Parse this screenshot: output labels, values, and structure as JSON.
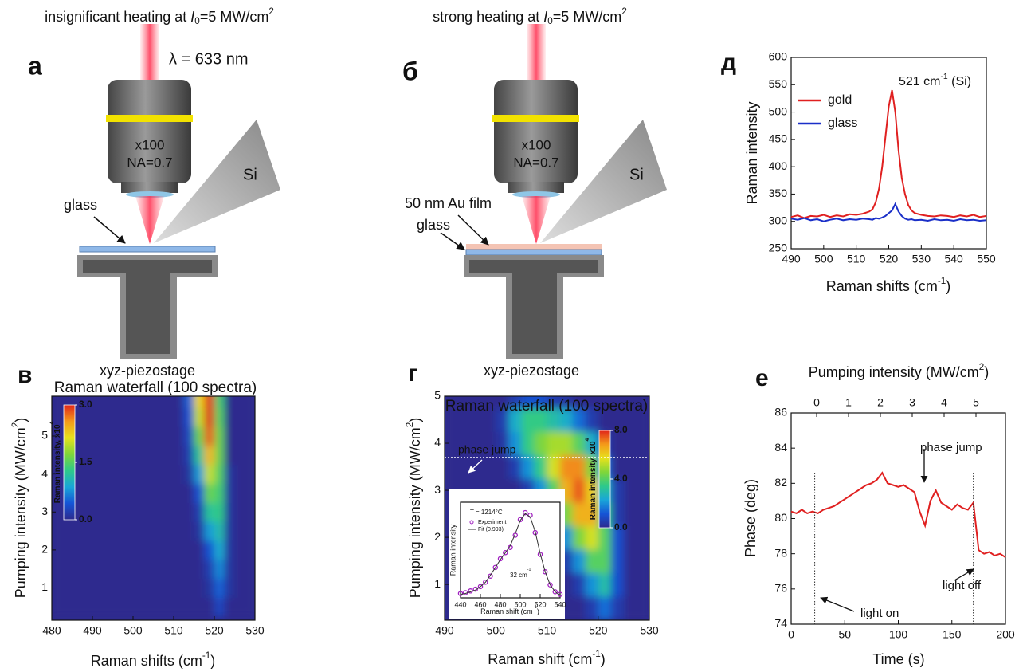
{
  "diagrams": [
    {
      "panel": "а",
      "heading": {
        "text": "insignificant heating at ",
        "var": "I",
        "sub": "0",
        "mid": "=5 MW/cm",
        "sup": "2"
      },
      "wavelength": "λ = 633 nm",
      "objective": [
        "x100",
        "NA=0.7"
      ],
      "tip": "Si",
      "labels": [
        "glass"
      ],
      "stage": "xyz-piezostage"
    },
    {
      "panel": "б",
      "heading": {
        "text": "strong heating at ",
        "var": "I",
        "sub": "0",
        "mid": "=5 MW/cm",
        "sup": "2"
      },
      "objective": [
        "x100",
        "NA=0.7"
      ],
      "tip": "Si",
      "labels": [
        "50 nm Au film",
        "glass"
      ],
      "stage": "xyz-piezostage"
    }
  ],
  "chart_data": [
    {
      "type": "line",
      "panel": "д",
      "xlabel": {
        "text": "Raman shifts (cm",
        "sup": "-1",
        "tail": ")"
      },
      "ylabel": "Raman intensity",
      "x": [
        490,
        492,
        494,
        496,
        498,
        500,
        502,
        504,
        506,
        508,
        510,
        512,
        514,
        515,
        516,
        517,
        518,
        519,
        520,
        521,
        522,
        523,
        524,
        525,
        526,
        527,
        528,
        530,
        532,
        534,
        536,
        538,
        540,
        542,
        544,
        546,
        548,
        550
      ],
      "series": [
        {
          "name": "gold",
          "color": "#e02020",
          "values": [
            308,
            311,
            306,
            310,
            309,
            312,
            308,
            311,
            309,
            313,
            312,
            314,
            318,
            322,
            335,
            360,
            400,
            455,
            510,
            540,
            500,
            430,
            380,
            350,
            330,
            320,
            315,
            312,
            310,
            309,
            311,
            310,
            308,
            311,
            309,
            312,
            308,
            310
          ]
        },
        {
          "name": "glass",
          "color": "#1a2fc8",
          "values": [
            305,
            303,
            306,
            302,
            304,
            300,
            303,
            305,
            302,
            304,
            303,
            305,
            304,
            303,
            306,
            305,
            307,
            310,
            315,
            320,
            332,
            318,
            310,
            305,
            303,
            304,
            302,
            303,
            301,
            304,
            302,
            303,
            301,
            304,
            302,
            303,
            301,
            302
          ]
        }
      ],
      "annotation": {
        "text": "521 cm",
        "sup": "-1",
        "tail": " (Si)"
      },
      "xlim": [
        490,
        550
      ],
      "xticks": [
        490,
        500,
        510,
        520,
        530,
        540,
        550
      ],
      "ylim": [
        250,
        600
      ],
      "yticks": [
        250,
        300,
        350,
        400,
        450,
        500,
        550,
        600
      ],
      "legend": "upper left",
      "grid": false
    },
    {
      "type": "line",
      "panel": "е",
      "xlabel": "Time (s)",
      "ylabel": "Phase (deg)",
      "x2label": {
        "text": "Pumping intensity (MW/cm",
        "sup": "2",
        "tail": ")"
      },
      "x": [
        0,
        5,
        10,
        15,
        20,
        25,
        30,
        35,
        40,
        45,
        50,
        55,
        60,
        65,
        70,
        75,
        80,
        85,
        90,
        95,
        100,
        105,
        110,
        115,
        120,
        125,
        130,
        135,
        140,
        145,
        150,
        155,
        160,
        165,
        170,
        175,
        180,
        185,
        190,
        195,
        200
      ],
      "series": [
        {
          "color": "#e02020",
          "values": [
            80.4,
            80.3,
            80.5,
            80.3,
            80.4,
            80.3,
            80.5,
            80.6,
            80.7,
            80.9,
            81.1,
            81.3,
            81.5,
            81.7,
            81.9,
            82.0,
            82.2,
            82.6,
            82.0,
            81.9,
            81.8,
            81.9,
            81.7,
            81.5,
            80.4,
            79.6,
            81.0,
            81.6,
            80.9,
            80.7,
            80.5,
            80.8,
            80.6,
            80.5,
            80.9,
            78.2,
            78.0,
            78.1,
            77.9,
            78.0,
            77.8
          ]
        }
      ],
      "vlines": [
        22,
        170
      ],
      "annotations": [
        "phase jump",
        "light off",
        "light on"
      ],
      "xlim": [
        0,
        200
      ],
      "xticks": [
        0,
        50,
        100,
        150,
        200
      ],
      "ylim": [
        74,
        86
      ],
      "yticks": [
        74,
        76,
        78,
        80,
        82,
        84,
        86
      ],
      "x2lim": [
        -0.8,
        5.925
      ],
      "x2ticks": [
        0,
        1,
        2,
        3,
        4,
        5
      ],
      "grid": false
    },
    {
      "type": "heatmap",
      "panel": "в",
      "title": "Raman waterfall (100 spectra)",
      "xlabel": {
        "text": "Raman shifts (cm",
        "sup": "-1",
        "tail": ")"
      },
      "ylabel": {
        "text": "Pumping intensity (MW/cm",
        "sup": "2",
        "tail": ")"
      },
      "x": [
        481.25,
        483.75,
        486.25,
        488.75,
        491.25,
        493.75,
        496.25,
        498.75,
        501.25,
        503.75,
        506.25,
        508.75,
        511.25,
        513.75,
        516.25,
        518.75,
        521.25,
        523.75,
        526.25,
        528.75
      ],
      "y": [
        0.5,
        1.0,
        1.5,
        2.0,
        2.5,
        3.0,
        3.5,
        4.0,
        4.5,
        5.0,
        5.5,
        6.0
      ],
      "z": [
        [
          0,
          0,
          0,
          0,
          0,
          0,
          0,
          0,
          0,
          0,
          0,
          0,
          0,
          0,
          0,
          0,
          0.3,
          0,
          0,
          0
        ],
        [
          0,
          0,
          0,
          0,
          0,
          0,
          0,
          0,
          0,
          0,
          0,
          0,
          0,
          0,
          0,
          0.1,
          0.5,
          0.1,
          0,
          0
        ],
        [
          0,
          0,
          0,
          0,
          0,
          0,
          0,
          0,
          0,
          0,
          0,
          0,
          0,
          0,
          0,
          0.2,
          0.7,
          0.1,
          0,
          0
        ],
        [
          0,
          0,
          0,
          0,
          0,
          0,
          0,
          0,
          0,
          0,
          0,
          0,
          0,
          0,
          0,
          0.4,
          0.9,
          0.1,
          0,
          0
        ],
        [
          0,
          0,
          0,
          0,
          0,
          0,
          0,
          0,
          0,
          0,
          0,
          0,
          0,
          0,
          0.1,
          0.8,
          1.1,
          0.1,
          0,
          0
        ],
        [
          0,
          0,
          0,
          0,
          0,
          0,
          0,
          0,
          0,
          0,
          0,
          0,
          0,
          0,
          0.2,
          1.2,
          1.3,
          0.1,
          0,
          0
        ],
        [
          0,
          0,
          0,
          0,
          0,
          0,
          0,
          0,
          0,
          0,
          0,
          0,
          0,
          0,
          0.4,
          1.6,
          1.4,
          0.1,
          0,
          0
        ],
        [
          0,
          0,
          0,
          0,
          0,
          0,
          0,
          0,
          0,
          0,
          0,
          0,
          0,
          0.1,
          0.8,
          2.0,
          1.5,
          0.1,
          0,
          0
        ],
        [
          0,
          0,
          0,
          0,
          0,
          0,
          0,
          0,
          0,
          0,
          0,
          0,
          0,
          0.2,
          1.2,
          2.4,
          1.6,
          0,
          0,
          0
        ],
        [
          0,
          0,
          0,
          0,
          0,
          0,
          0,
          0,
          0,
          0,
          0,
          0,
          0,
          0.3,
          1.6,
          2.8,
          1.6,
          0,
          0,
          0
        ],
        [
          0,
          0,
          0,
          0,
          0,
          0,
          0,
          0,
          0,
          0,
          0,
          0,
          0,
          0.4,
          2.0,
          3.0,
          1.5,
          0,
          0,
          0
        ],
        [
          0,
          0,
          0,
          0,
          0,
          0,
          0,
          0,
          0,
          0,
          0,
          0,
          0,
          0.5,
          2.2,
          3.0,
          1.4,
          0,
          0,
          0
        ]
      ],
      "colormap": [
        "#2d2a8e",
        "#1554d6",
        "#19a6d8",
        "#2ec98a",
        "#7fd63a",
        "#e7e21c",
        "#f49a1a",
        "#e0261a"
      ],
      "colorbar": {
        "label": {
          "text": "Raman intensity, x10",
          "sup": "4"
        },
        "lim": [
          0,
          3
        ],
        "ticks": [
          {
            "value": 0,
            "label": "0.0"
          },
          {
            "value": 1.5,
            "label": "1.5"
          },
          {
            "value": 3,
            "label": "3.0"
          }
        ]
      },
      "xlim": [
        480,
        530
      ],
      "xticks": [
        480,
        490,
        500,
        510,
        520,
        530
      ],
      "ylim": [
        0.15,
        6.05
      ],
      "yticks": [
        1,
        2,
        3,
        4,
        5
      ]
    },
    {
      "type": "heatmap",
      "panel": "г",
      "title": "Raman waterfall (100 spectra)",
      "xlabel": {
        "text": "Raman shift (cm",
        "sup": "-1",
        "tail": ")"
      },
      "ylabel": {
        "text": "Pumping intensity (MW/cm",
        "sup": "2",
        "tail": ")"
      },
      "x": [
        491.25,
        493.75,
        496.25,
        498.75,
        501.25,
        503.75,
        506.25,
        508.75,
        511.25,
        513.75,
        516.25,
        518.75,
        521.25,
        523.75,
        526.25,
        528.75
      ],
      "y": [
        0.5,
        1.0,
        1.5,
        2.0,
        2.5,
        3.0,
        3.5,
        4.0,
        4.5,
        5.0
      ],
      "z": [
        [
          0,
          0,
          0,
          0,
          0,
          0,
          0,
          0,
          0,
          0,
          0,
          0.5,
          1.5,
          0.5,
          0,
          0
        ],
        [
          0,
          0,
          0,
          0,
          0,
          0,
          0,
          0,
          0,
          0,
          0.5,
          2.0,
          3.0,
          1.0,
          0,
          0
        ],
        [
          0,
          0,
          0,
          0,
          0,
          0,
          0,
          0,
          0,
          0.5,
          2.0,
          4.0,
          4.0,
          1.0,
          0,
          0
        ],
        [
          0,
          0,
          0,
          0,
          0,
          0,
          0,
          0,
          0.5,
          2.0,
          4.5,
          5.5,
          4.0,
          1.0,
          0,
          0
        ],
        [
          0,
          0,
          0,
          0,
          0,
          0,
          0,
          0.5,
          2.0,
          4.5,
          6.5,
          6.5,
          3.5,
          0.5,
          0,
          0
        ],
        [
          0,
          0,
          0,
          0,
          0,
          0,
          0.5,
          2.0,
          4.0,
          6.5,
          7.5,
          6.0,
          2.5,
          0.5,
          0,
          0
        ],
        [
          0,
          0,
          0,
          0,
          0,
          0.5,
          2.0,
          3.5,
          5.5,
          7.0,
          7.0,
          4.5,
          1.5,
          0,
          0,
          0
        ],
        [
          0,
          0,
          0,
          0,
          0.3,
          2.0,
          3.5,
          4.5,
          5.0,
          5.0,
          4.0,
          2.5,
          0.5,
          0,
          0,
          0
        ],
        [
          0,
          0,
          0,
          0,
          0.5,
          2.5,
          3.5,
          3.5,
          3.0,
          2.5,
          1.5,
          0.5,
          0,
          0,
          0,
          0
        ],
        [
          0,
          0,
          0,
          0,
          0,
          0.5,
          1.0,
          1.0,
          0.5,
          0.3,
          0,
          0,
          0,
          0,
          0,
          0
        ]
      ],
      "colormap": [
        "#2d2a8e",
        "#1554d6",
        "#19a6d8",
        "#2ec98a",
        "#7fd63a",
        "#e7e21c",
        "#f49a1a",
        "#e0261a"
      ],
      "colorbar": {
        "label": {
          "text": "Raman intensity, x10",
          "sup": "4"
        },
        "lim": [
          0,
          8
        ],
        "ticks": [
          {
            "value": 0,
            "label": "0.0"
          },
          {
            "value": 4,
            "label": "4.0"
          },
          {
            "value": 8,
            "label": "8.0"
          }
        ]
      },
      "hline": 3.7,
      "annotation": "phase jump",
      "xlim": [
        490,
        530
      ],
      "xticks": [
        490,
        500,
        510,
        520,
        530
      ],
      "ylim": [
        0.24,
        5
      ],
      "yticks": [
        1,
        2,
        3,
        4,
        5
      ]
    },
    {
      "type": "line",
      "inset": true,
      "xlabel": {
        "text": "Raman shift (cm",
        "sup": "-1",
        "tail": ")"
      },
      "ylabel": "Raman intensity",
      "x": [
        440,
        445,
        450,
        455,
        460,
        465,
        470,
        475,
        480,
        485,
        490,
        495,
        500,
        505,
        510,
        515,
        520,
        525,
        530,
        535,
        540
      ],
      "series": [
        {
          "name": "Experiment",
          "style": "points",
          "color": "#a020c0",
          "values": [
            0.05,
            0.06,
            0.08,
            0.1,
            0.13,
            0.18,
            0.25,
            0.35,
            0.45,
            0.52,
            0.58,
            0.72,
            0.9,
            0.98,
            0.95,
            0.75,
            0.5,
            0.3,
            0.15,
            0.07,
            0.04
          ]
        },
        {
          "name": "Fit (0.993)",
          "style": "line",
          "color": "#333333",
          "values": [
            0.04,
            0.05,
            0.07,
            0.09,
            0.13,
            0.18,
            0.26,
            0.35,
            0.44,
            0.52,
            0.6,
            0.74,
            0.89,
            0.97,
            0.93,
            0.76,
            0.51,
            0.3,
            0.15,
            0.07,
            0.03
          ]
        }
      ],
      "annotations": [
        "T = 1214°C",
        {
          "text": "32 cm",
          "sup": "-1"
        }
      ],
      "xlim": [
        440,
        540
      ],
      "xticks": [
        440,
        460,
        480,
        500,
        520,
        540
      ],
      "ylim": [
        0,
        1.1
      ]
    }
  ]
}
